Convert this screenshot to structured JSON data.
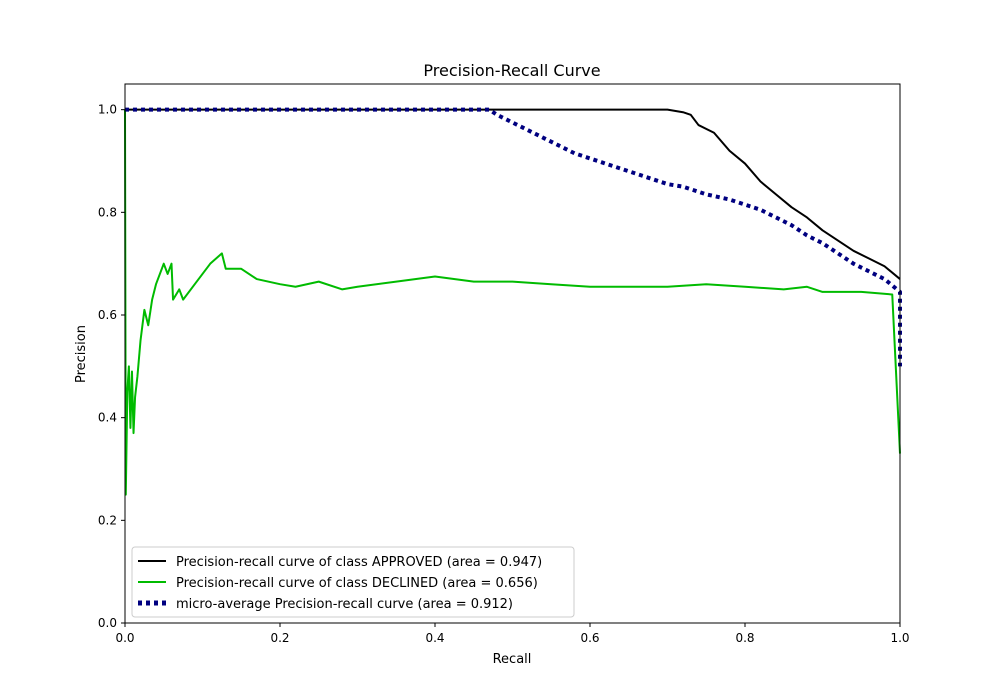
{
  "chart_data": {
    "type": "line",
    "title": "Precision-Recall Curve",
    "xlabel": "Recall",
    "ylabel": "Precision",
    "xlim": [
      0.0,
      1.0
    ],
    "ylim": [
      0.0,
      1.05
    ],
    "xticks": [
      "0.0",
      "0.2",
      "0.4",
      "0.6",
      "0.8",
      "1.0"
    ],
    "yticks": [
      "0.0",
      "0.2",
      "0.4",
      "0.6",
      "0.8",
      "1.0"
    ],
    "grid": false,
    "legend_position": "lower-left",
    "series": [
      {
        "name": "Precision-recall curve of class APPROVED (area = 0.947)",
        "color": "#000000",
        "style": "solid",
        "points": [
          [
            0.0,
            1.0
          ],
          [
            0.7,
            1.0
          ],
          [
            0.72,
            0.995
          ],
          [
            0.73,
            0.99
          ],
          [
            0.74,
            0.97
          ],
          [
            0.76,
            0.955
          ],
          [
            0.78,
            0.92
          ],
          [
            0.8,
            0.895
          ],
          [
            0.82,
            0.86
          ],
          [
            0.84,
            0.835
          ],
          [
            0.86,
            0.81
          ],
          [
            0.88,
            0.79
          ],
          [
            0.9,
            0.765
          ],
          [
            0.92,
            0.745
          ],
          [
            0.94,
            0.725
          ],
          [
            0.96,
            0.71
          ],
          [
            0.98,
            0.695
          ],
          [
            1.0,
            0.67
          ]
        ]
      },
      {
        "name": "Precision-recall curve of class DECLINED (area = 0.656)",
        "color": "#00bb00",
        "style": "solid",
        "points": [
          [
            0.0,
            1.0
          ],
          [
            0.001,
            0.25
          ],
          [
            0.003,
            0.45
          ],
          [
            0.005,
            0.5
          ],
          [
            0.007,
            0.38
          ],
          [
            0.009,
            0.49
          ],
          [
            0.011,
            0.37
          ],
          [
            0.013,
            0.44
          ],
          [
            0.016,
            0.48
          ],
          [
            0.02,
            0.55
          ],
          [
            0.025,
            0.61
          ],
          [
            0.03,
            0.58
          ],
          [
            0.035,
            0.63
          ],
          [
            0.04,
            0.66
          ],
          [
            0.05,
            0.7
          ],
          [
            0.055,
            0.68
          ],
          [
            0.06,
            0.7
          ],
          [
            0.062,
            0.63
          ],
          [
            0.07,
            0.65
          ],
          [
            0.075,
            0.63
          ],
          [
            0.09,
            0.66
          ],
          [
            0.11,
            0.7
          ],
          [
            0.125,
            0.72
          ],
          [
            0.13,
            0.69
          ],
          [
            0.15,
            0.69
          ],
          [
            0.17,
            0.67
          ],
          [
            0.2,
            0.66
          ],
          [
            0.22,
            0.655
          ],
          [
            0.25,
            0.665
          ],
          [
            0.28,
            0.65
          ],
          [
            0.3,
            0.655
          ],
          [
            0.35,
            0.665
          ],
          [
            0.4,
            0.675
          ],
          [
            0.45,
            0.665
          ],
          [
            0.5,
            0.665
          ],
          [
            0.55,
            0.66
          ],
          [
            0.6,
            0.655
          ],
          [
            0.65,
            0.655
          ],
          [
            0.7,
            0.655
          ],
          [
            0.75,
            0.66
          ],
          [
            0.8,
            0.655
          ],
          [
            0.85,
            0.65
          ],
          [
            0.88,
            0.655
          ],
          [
            0.9,
            0.645
          ],
          [
            0.95,
            0.645
          ],
          [
            0.99,
            0.64
          ],
          [
            1.0,
            0.33
          ]
        ]
      },
      {
        "name": "micro-average Precision-recall curve (area = 0.912)",
        "color": "#000080",
        "style": "dotted",
        "points": [
          [
            0.0,
            1.0
          ],
          [
            0.47,
            1.0
          ],
          [
            0.48,
            0.99
          ],
          [
            0.5,
            0.975
          ],
          [
            0.52,
            0.96
          ],
          [
            0.54,
            0.945
          ],
          [
            0.56,
            0.93
          ],
          [
            0.58,
            0.915
          ],
          [
            0.6,
            0.905
          ],
          [
            0.62,
            0.895
          ],
          [
            0.65,
            0.88
          ],
          [
            0.68,
            0.865
          ],
          [
            0.7,
            0.855
          ],
          [
            0.72,
            0.85
          ],
          [
            0.75,
            0.835
          ],
          [
            0.78,
            0.825
          ],
          [
            0.8,
            0.815
          ],
          [
            0.82,
            0.805
          ],
          [
            0.84,
            0.79
          ],
          [
            0.86,
            0.775
          ],
          [
            0.88,
            0.755
          ],
          [
            0.9,
            0.74
          ],
          [
            0.92,
            0.72
          ],
          [
            0.94,
            0.7
          ],
          [
            0.96,
            0.685
          ],
          [
            0.98,
            0.67
          ],
          [
            1.0,
            0.645
          ],
          [
            1.0,
            0.5
          ]
        ]
      }
    ]
  }
}
